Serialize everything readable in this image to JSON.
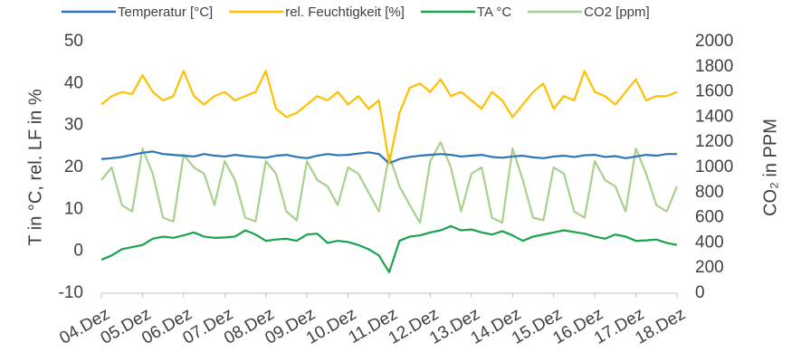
{
  "chart_data": {
    "type": "line",
    "y_label": "T in °C, rel. LF in %",
    "y2_label": "CO₂ in PPM",
    "x": [
      0,
      0.25,
      0.5,
      0.75,
      1,
      1.25,
      1.5,
      1.75,
      2,
      2.25,
      2.5,
      2.75,
      3,
      3.25,
      3.5,
      3.75,
      4,
      4.25,
      4.5,
      4.75,
      5,
      5.25,
      5.5,
      5.75,
      6,
      6.25,
      6.5,
      6.75,
      7,
      7.25,
      7.5,
      7.75,
      8,
      8.25,
      8.5,
      8.75,
      9,
      9.25,
      9.5,
      9.75,
      10,
      10.25,
      10.5,
      10.75,
      11,
      11.25,
      11.5,
      11.75,
      12,
      12.25,
      12.5,
      12.75,
      13,
      13.25,
      13.5,
      13.75,
      14
    ],
    "xlim": [
      0,
      14
    ],
    "xticks": [
      {
        "value": 0,
        "label": "04.Dez"
      },
      {
        "value": 1,
        "label": "05.Dez"
      },
      {
        "value": 2,
        "label": "06.Dez"
      },
      {
        "value": 3,
        "label": "07.Dez"
      },
      {
        "value": 4,
        "label": "08.Dez"
      },
      {
        "value": 5,
        "label": "09.Dez"
      },
      {
        "value": 6,
        "label": "10.Dez"
      },
      {
        "value": 7,
        "label": "11.Dez"
      },
      {
        "value": 8,
        "label": "12.Dez"
      },
      {
        "value": 9,
        "label": "13.Dez"
      },
      {
        "value": 10,
        "label": "14.Dez"
      },
      {
        "value": 11,
        "label": "15.Dez"
      },
      {
        "value": 12,
        "label": "16.Dez"
      },
      {
        "value": 13,
        "label": "17.Dez"
      },
      {
        "value": 14,
        "label": "18.Dez"
      }
    ],
    "ylim": [
      -10,
      50
    ],
    "yticks": [
      -10,
      0,
      10,
      20,
      30,
      40,
      50
    ],
    "y2lim": [
      0,
      2000
    ],
    "y2ticks": [
      0,
      200,
      400,
      600,
      800,
      1000,
      1200,
      1400,
      1600,
      1800,
      2000
    ],
    "grid": false,
    "legend": "top",
    "series": [
      {
        "name": "Temperatur [°C]",
        "color": "#2e75b6",
        "axis": "y",
        "values": [
          22,
          22.2,
          22.5,
          23,
          23.5,
          23.8,
          23.2,
          23,
          22.8,
          22.6,
          23.2,
          22.8,
          22.6,
          23,
          22.7,
          22.5,
          22.3,
          22.8,
          23,
          22.5,
          22.2,
          22.8,
          23.2,
          22.9,
          23,
          23.3,
          23.6,
          23.2,
          21,
          22,
          22.5,
          22.8,
          23,
          23.2,
          23,
          22.6,
          22.8,
          23,
          22.5,
          22.3,
          22.6,
          22.8,
          22.4,
          22.2,
          22.6,
          22.8,
          22.5,
          22.9,
          23,
          22.5,
          22.7,
          22.2,
          22.6,
          23,
          22.8,
          23.2,
          23.2
        ]
      },
      {
        "name": "rel. Feuchtigkeit [%]",
        "color": "#ffc000",
        "axis": "y",
        "values": [
          35,
          37,
          38,
          37.5,
          42,
          38,
          36,
          37,
          43,
          37,
          35,
          37,
          38,
          36,
          37,
          38,
          43,
          34,
          32,
          33,
          35,
          37,
          36,
          38,
          35,
          37,
          34,
          36,
          21,
          33,
          39,
          40,
          38,
          41,
          37,
          38,
          36,
          34,
          38,
          36,
          32,
          35,
          38,
          40,
          34,
          37,
          36,
          43,
          38,
          37,
          35,
          38,
          41,
          36,
          37,
          37,
          38
        ]
      },
      {
        "name": "TA °C",
        "color": "#1aa34a",
        "axis": "y",
        "values": [
          -2,
          -1,
          0.5,
          1,
          1.5,
          3,
          3.5,
          3.2,
          3.8,
          4.5,
          3.5,
          3.2,
          3.3,
          3.5,
          5,
          4,
          2.5,
          2.8,
          3,
          2.5,
          4,
          4.2,
          2,
          2.5,
          2.2,
          1.5,
          0.5,
          -1,
          -5,
          2.5,
          3.5,
          3.8,
          4.5,
          5,
          6,
          5,
          5.2,
          4.5,
          4,
          4.8,
          3.8,
          2.5,
          3.5,
          4,
          4.5,
          5,
          4.6,
          4.2,
          3.5,
          3,
          4,
          3.5,
          2.5,
          2.6,
          2.8,
          2,
          1.5
        ]
      },
      {
        "name": "CO2 [ppm]",
        "color": "#a9d18e",
        "axis": "y2",
        "values": [
          900,
          1000,
          700,
          650,
          1150,
          950,
          600,
          570,
          1100,
          1000,
          950,
          700,
          1050,
          900,
          600,
          570,
          1050,
          950,
          650,
          580,
          1050,
          900,
          850,
          700,
          1000,
          950,
          800,
          650,
          1100,
          850,
          700,
          560,
          1050,
          1200,
          1000,
          650,
          950,
          1000,
          600,
          560,
          1150,
          900,
          600,
          580,
          1000,
          950,
          650,
          600,
          1050,
          900,
          850,
          650,
          1150,
          950,
          700,
          650,
          850
        ]
      }
    ]
  }
}
